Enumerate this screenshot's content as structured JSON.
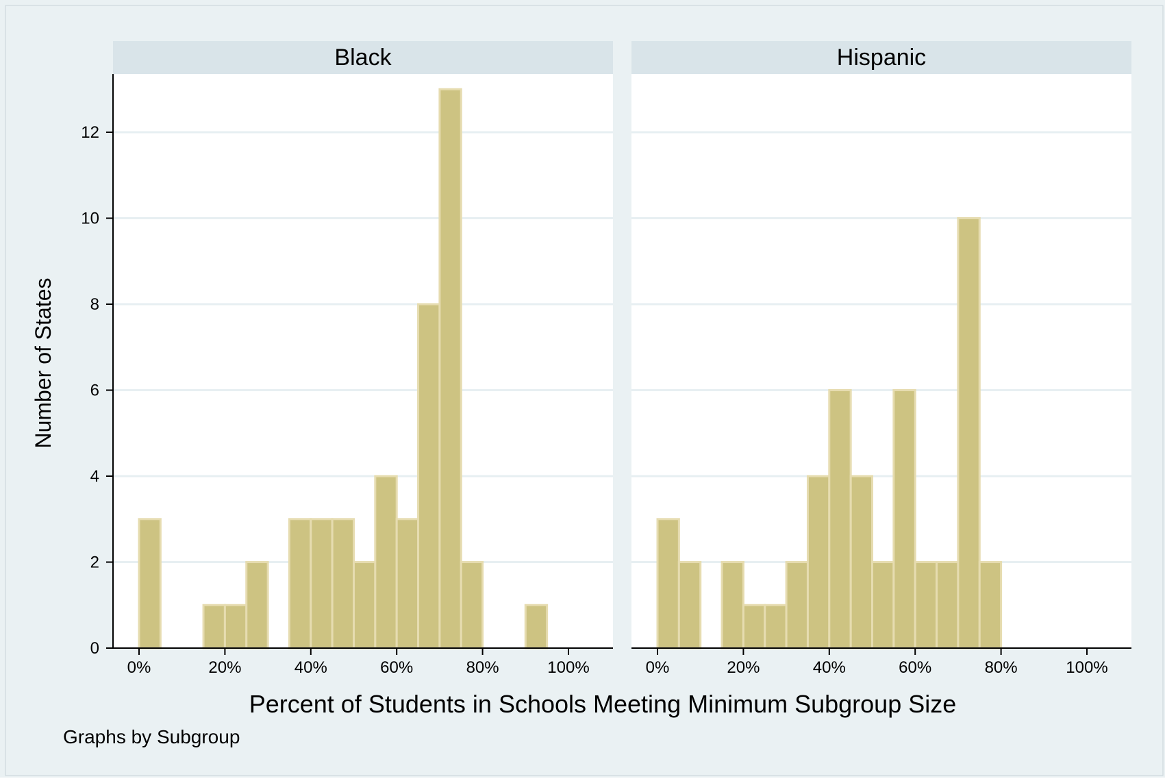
{
  "chart_data": {
    "type": "bar",
    "subtype": "histogram",
    "xlabel": "Percent of Students in Schools Meeting Minimum Subgroup Size",
    "ylabel": "Number of States",
    "note": "Graphs by Subgroup",
    "xlim": [
      0,
      100
    ],
    "ylim": [
      0,
      13
    ],
    "bin_width": 5,
    "x_ticks": [
      0,
      20,
      40,
      60,
      80,
      100
    ],
    "x_tick_labels": [
      "0%",
      "20%",
      "40%",
      "60%",
      "80%",
      "100%"
    ],
    "y_ticks": [
      0,
      2,
      4,
      6,
      8,
      10,
      12
    ],
    "y_tick_labels": [
      "0",
      "2",
      "4",
      "6",
      "8",
      "10",
      "12"
    ],
    "grid": true,
    "colors": {
      "bar_fill": "#cdc382",
      "bar_stroke": "#e6dcb0",
      "panel_header": "#d9e4e9",
      "outer_background": "#eaf1f3",
      "gridline": "#e7eff2",
      "axis": "#000000"
    },
    "panels": [
      {
        "title": "Black",
        "bins": [
          {
            "start": 0,
            "count": 3
          },
          {
            "start": 15,
            "count": 1
          },
          {
            "start": 20,
            "count": 1
          },
          {
            "start": 25,
            "count": 2
          },
          {
            "start": 35,
            "count": 3
          },
          {
            "start": 40,
            "count": 3
          },
          {
            "start": 45,
            "count": 3
          },
          {
            "start": 50,
            "count": 2
          },
          {
            "start": 55,
            "count": 4
          },
          {
            "start": 60,
            "count": 3
          },
          {
            "start": 65,
            "count": 8
          },
          {
            "start": 70,
            "count": 13
          },
          {
            "start": 75,
            "count": 2
          },
          {
            "start": 90,
            "count": 1
          }
        ]
      },
      {
        "title": "Hispanic",
        "bins": [
          {
            "start": 0,
            "count": 3
          },
          {
            "start": 5,
            "count": 2
          },
          {
            "start": 15,
            "count": 2
          },
          {
            "start": 20,
            "count": 1
          },
          {
            "start": 25,
            "count": 1
          },
          {
            "start": 30,
            "count": 2
          },
          {
            "start": 35,
            "count": 4
          },
          {
            "start": 40,
            "count": 6
          },
          {
            "start": 45,
            "count": 4
          },
          {
            "start": 50,
            "count": 2
          },
          {
            "start": 55,
            "count": 6
          },
          {
            "start": 60,
            "count": 2
          },
          {
            "start": 65,
            "count": 2
          },
          {
            "start": 70,
            "count": 10
          },
          {
            "start": 75,
            "count": 2
          }
        ]
      }
    ]
  }
}
